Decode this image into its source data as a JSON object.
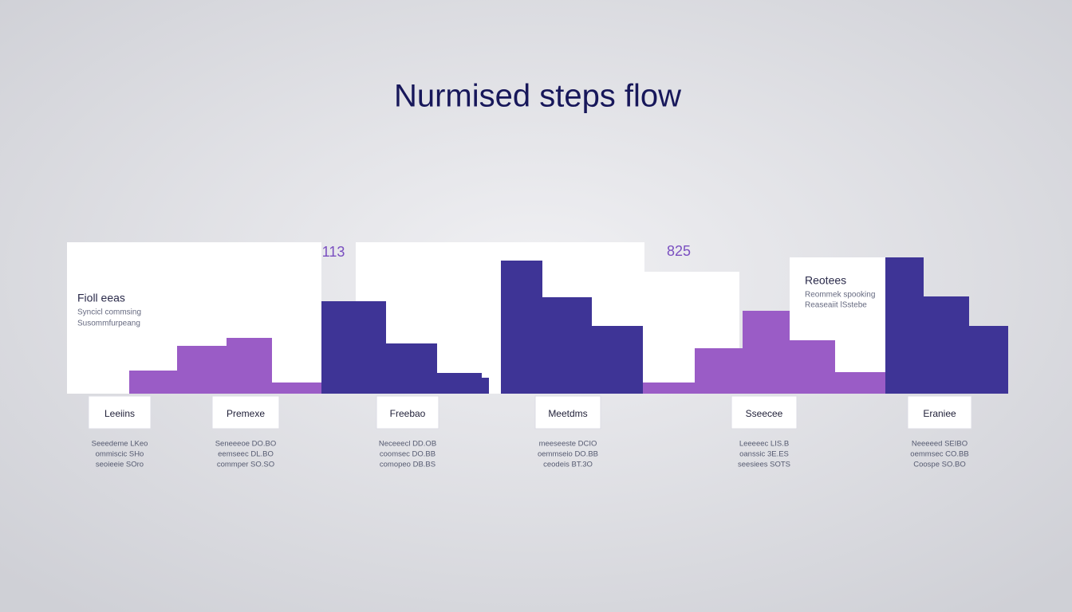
{
  "title": "Nurmised steps flow",
  "figures": [
    "113",
    "825"
  ],
  "notes": [
    {
      "heading": "Fioll eeas",
      "lines": [
        "Syncicl commsing",
        "Susommfurpeang"
      ]
    },
    {
      "heading": "Reotees",
      "lines": [
        "Reommek spooking",
        "Reaseaiit lSstebe"
      ]
    }
  ],
  "steps": [
    {
      "label": "Leeiins",
      "lines": [
        "Seeedeme LKeo",
        "ommiscic SHo",
        "seoieeie SOro"
      ]
    },
    {
      "label": "Premexe",
      "lines": [
        "Seneeeoe DO.BO",
        "eemseec DL.BO",
        "commper SO.SO"
      ]
    },
    {
      "label": "Freebao",
      "lines": [
        "Neceeecl DD.OB",
        "coomsec DO.BB",
        "comopeo DB.BS"
      ]
    },
    {
      "label": "Meetdms",
      "lines": [
        "meeseeste DCIO",
        "oemmseio DO.BB",
        "ceodeis BT.3O"
      ]
    },
    {
      "label": "Sseecee",
      "lines": [
        "Leeeeec LIS.B",
        "oanssic 3E.ES",
        "seesiees SOTS"
      ]
    },
    {
      "label": "Eraniee",
      "lines": [
        "Neeeeed SEIBO",
        "oemmsec CO.BB",
        "Coospe SO.BO"
      ]
    }
  ]
}
